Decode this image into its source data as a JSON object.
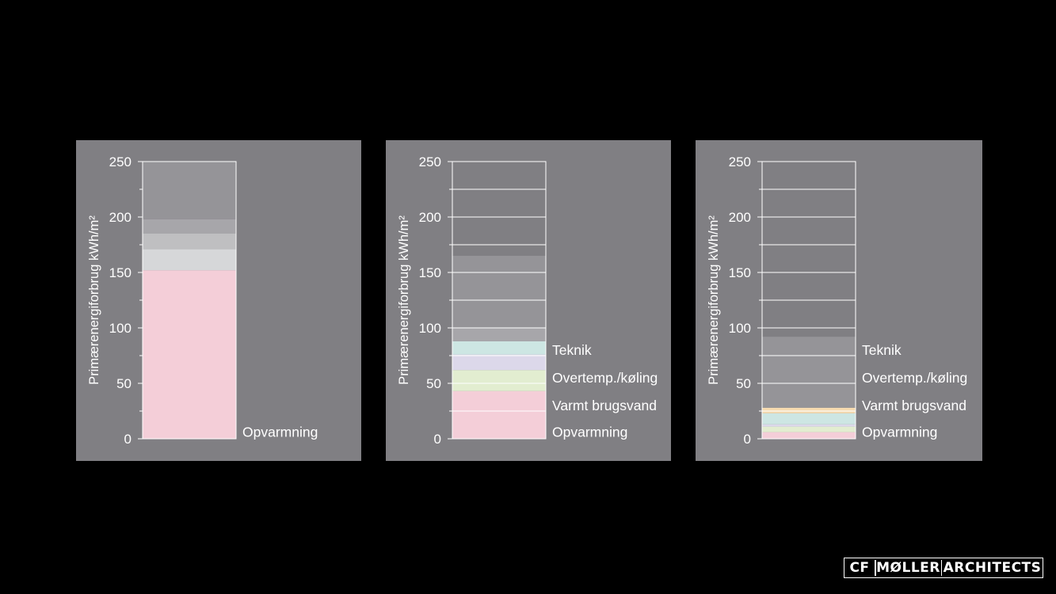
{
  "chart_data": [
    {
      "type": "bar",
      "stacked": true,
      "ylabel": "Primærenergiforbrug kWh/m²",
      "ylim": [
        0,
        250
      ],
      "yticks": [
        0,
        50,
        100,
        150,
        200,
        250
      ],
      "grid": false,
      "segments": [
        {
          "value": 152,
          "color": "#f4ced8"
        },
        {
          "value": 19,
          "color": "#d6d7d9"
        },
        {
          "value": 14,
          "color": "#bfbfc1"
        },
        {
          "value": 13,
          "color": "#a7a6aa"
        },
        {
          "value": 52,
          "color": "#959498"
        }
      ],
      "labels": [
        {
          "text": "Opvarmning",
          "y": 5
        }
      ]
    },
    {
      "type": "bar",
      "stacked": true,
      "ylabel": "Primærenergiforbrug kWh/m²",
      "ylim": [
        0,
        250
      ],
      "yticks": [
        0,
        50,
        100,
        150,
        200,
        250
      ],
      "grid": true,
      "segments": [
        {
          "value": 43,
          "color": "#f4ced8"
        },
        {
          "value": 19,
          "color": "#e2edd0"
        },
        {
          "value": 14,
          "color": "#dcd8ea"
        },
        {
          "value": 12,
          "color": "#cde6e3"
        },
        {
          "value": 12,
          "color": "#a7a6aa"
        },
        {
          "value": 65,
          "color": "#959498"
        }
      ],
      "labels": [
        {
          "text": "Opvarmning",
          "y": 5
        },
        {
          "text": "Varmt brugsvand",
          "y": 29
        },
        {
          "text": "Overtemp./køling",
          "y": 54
        },
        {
          "text": "Teknik",
          "y": 79
        }
      ]
    },
    {
      "type": "bar",
      "stacked": true,
      "ylabel": "Primærenergiforbrug kWh/m²",
      "ylim": [
        0,
        250
      ],
      "yticks": [
        0,
        50,
        100,
        150,
        200,
        250
      ],
      "grid": true,
      "segments": [
        {
          "value": 6,
          "color": "#f4ced8"
        },
        {
          "value": 5,
          "color": "#e2edd0"
        },
        {
          "value": 2,
          "color": "#dcd8ea"
        },
        {
          "value": 10,
          "color": "#cde6e3"
        },
        {
          "value": 5,
          "color": "#f6dbb0"
        },
        {
          "value": 64,
          "color": "#959498"
        }
      ],
      "labels": [
        {
          "text": "Opvarmning",
          "y": 5
        },
        {
          "text": "Varmt brugsvand",
          "y": 29
        },
        {
          "text": "Overtemp./køling",
          "y": 54
        },
        {
          "text": "Teknik",
          "y": 79
        }
      ]
    }
  ],
  "logo": {
    "part1": "CF",
    "part2": "MØLLER",
    "part3": "ARCHITECTS"
  }
}
